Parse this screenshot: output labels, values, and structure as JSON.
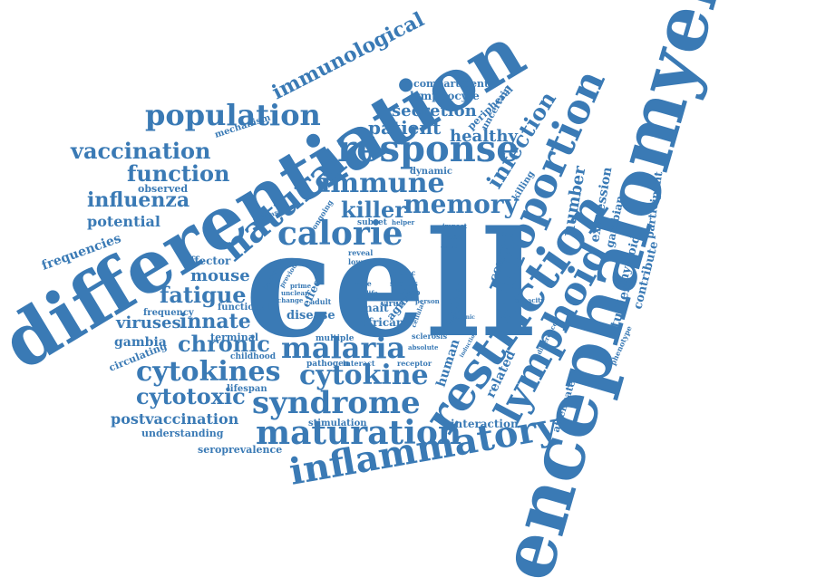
{
  "color": "#3a7ab5",
  "words": [
    "cell",
    "differentiation",
    "encephalomyelitis",
    "restriction",
    "lymphoid",
    "proportion",
    "response",
    "natural",
    "immune",
    "calorie",
    "inflammatory",
    "maturation",
    "syndrome",
    "malaria",
    "cytokines",
    "cytokine",
    "population",
    "memory",
    "killer",
    "infection",
    "vaccination",
    "function",
    "chronic",
    "fatigue",
    "cytotoxic",
    "innate",
    "viruses",
    "influenza",
    "immunological",
    "patient",
    "secretion",
    "healthy",
    "number",
    "expression",
    "mouse",
    "potential",
    "frequencies",
    "effector",
    "postvaccination",
    "gambia",
    "control",
    "higher",
    "human",
    "related",
    "interaction",
    "studies",
    "myeloid",
    "gambian",
    "contribute",
    "participant",
    "lymphocyte",
    "compartment",
    "peripheral",
    "uncertain",
    "killing",
    "dynamic",
    "mechanism",
    "observed",
    "circulating",
    "understanding",
    "seroprevalence",
    "lifespan",
    "terminal",
    "functional",
    "frequency",
    "childhood",
    "stimulation",
    "pathogen",
    "interact",
    "receptor",
    "multiple",
    "disease",
    "adult",
    "mait",
    "african",
    "aging",
    "blood",
    "virus",
    "vitro",
    "status",
    "pbmc",
    "life",
    "role",
    "lower",
    "reveal",
    "subset",
    "helper",
    "impact",
    "finding",
    "cohort",
    "person",
    "increase",
    "ongoing",
    "immunity",
    "previous",
    "prime",
    "unclear",
    "change",
    "effect",
    "sclerosis",
    "absolute",
    "induction",
    "splenic",
    "cellular",
    "capacity",
    "difference",
    "attenuate",
    "phenotype"
  ]
}
